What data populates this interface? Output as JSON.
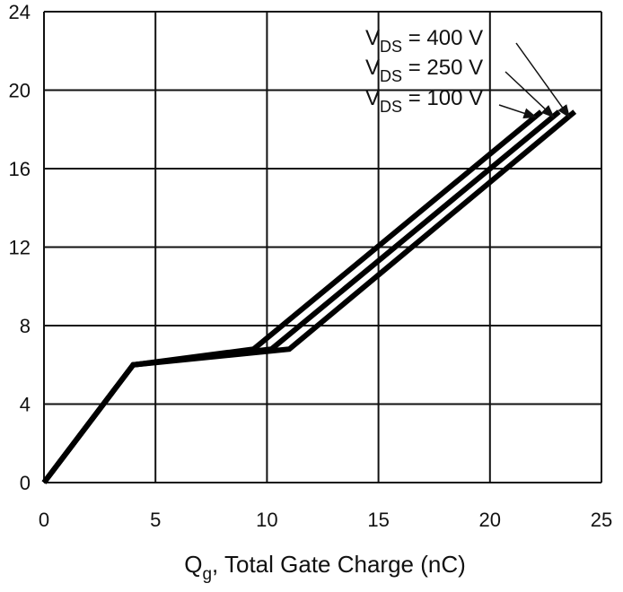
{
  "chart_data": {
    "type": "line",
    "title": "",
    "xlabel": "Q",
    "xlabel_sub": "g",
    "xlabel_rest": ", Total Gate Charge (nC)",
    "ylabel": "",
    "xlim": [
      0,
      25
    ],
    "ylim": [
      0,
      24
    ],
    "xticks": [
      0,
      5,
      10,
      15,
      20,
      25
    ],
    "yticks": [
      0,
      4,
      8,
      12,
      16,
      20,
      24
    ],
    "grid": true,
    "series": [
      {
        "name": "VDS = 100 V",
        "label_main": "V",
        "label_sub": "DS",
        "label_rest": " = 100 V",
        "x": [
          0,
          4,
          9.4,
          22.3
        ],
        "y": [
          0,
          6,
          6.8,
          18.9
        ]
      },
      {
        "name": "VDS = 250 V",
        "label_main": "V",
        "label_sub": "DS",
        "label_rest": " = 250 V",
        "x": [
          0,
          4,
          10.2,
          23.1
        ],
        "y": [
          0,
          6,
          6.8,
          18.9
        ]
      },
      {
        "name": "VDS = 400 V",
        "label_main": "V",
        "label_sub": "DS",
        "label_rest": " = 400 V",
        "x": [
          0,
          4,
          11.0,
          23.8
        ],
        "y": [
          0,
          6,
          6.8,
          18.9
        ]
      }
    ]
  }
}
